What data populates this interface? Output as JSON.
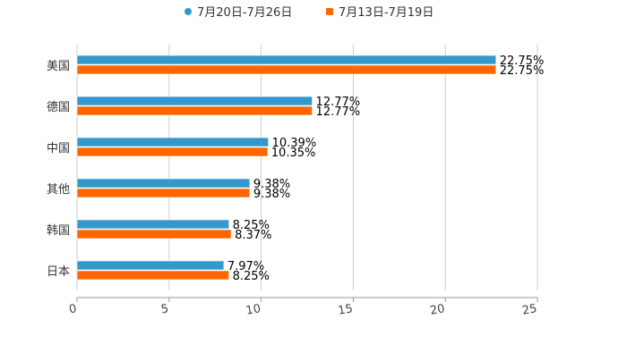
{
  "chart_data": {
    "type": "bar",
    "orientation": "horizontal",
    "categories": [
      "美国",
      "德国",
      "中国",
      "其他",
      "韩国",
      "日本"
    ],
    "series": [
      {
        "name": "7月20日-7月26日",
        "color": "#3399cc",
        "values": [
          22.75,
          12.77,
          10.39,
          9.38,
          8.25,
          7.97
        ],
        "labels": [
          "22.75%",
          "12.77%",
          "10.39%",
          "9.38%",
          "8.25%",
          "7.97%"
        ]
      },
      {
        "name": "7月13日-7月19日",
        "color": "#ff6600",
        "values": [
          22.75,
          12.77,
          10.35,
          9.38,
          8.37,
          8.25
        ],
        "labels": [
          "22.75%",
          "12.77%",
          "10.35%",
          "9.38%",
          "8.37%",
          "8.25%"
        ]
      }
    ],
    "xlim": [
      0,
      25
    ],
    "xticks": [
      "0",
      "5",
      "10",
      "15",
      "20",
      "25"
    ],
    "grid": true,
    "legend": "top-center",
    "title": "",
    "xlabel": "",
    "ylabel": ""
  }
}
